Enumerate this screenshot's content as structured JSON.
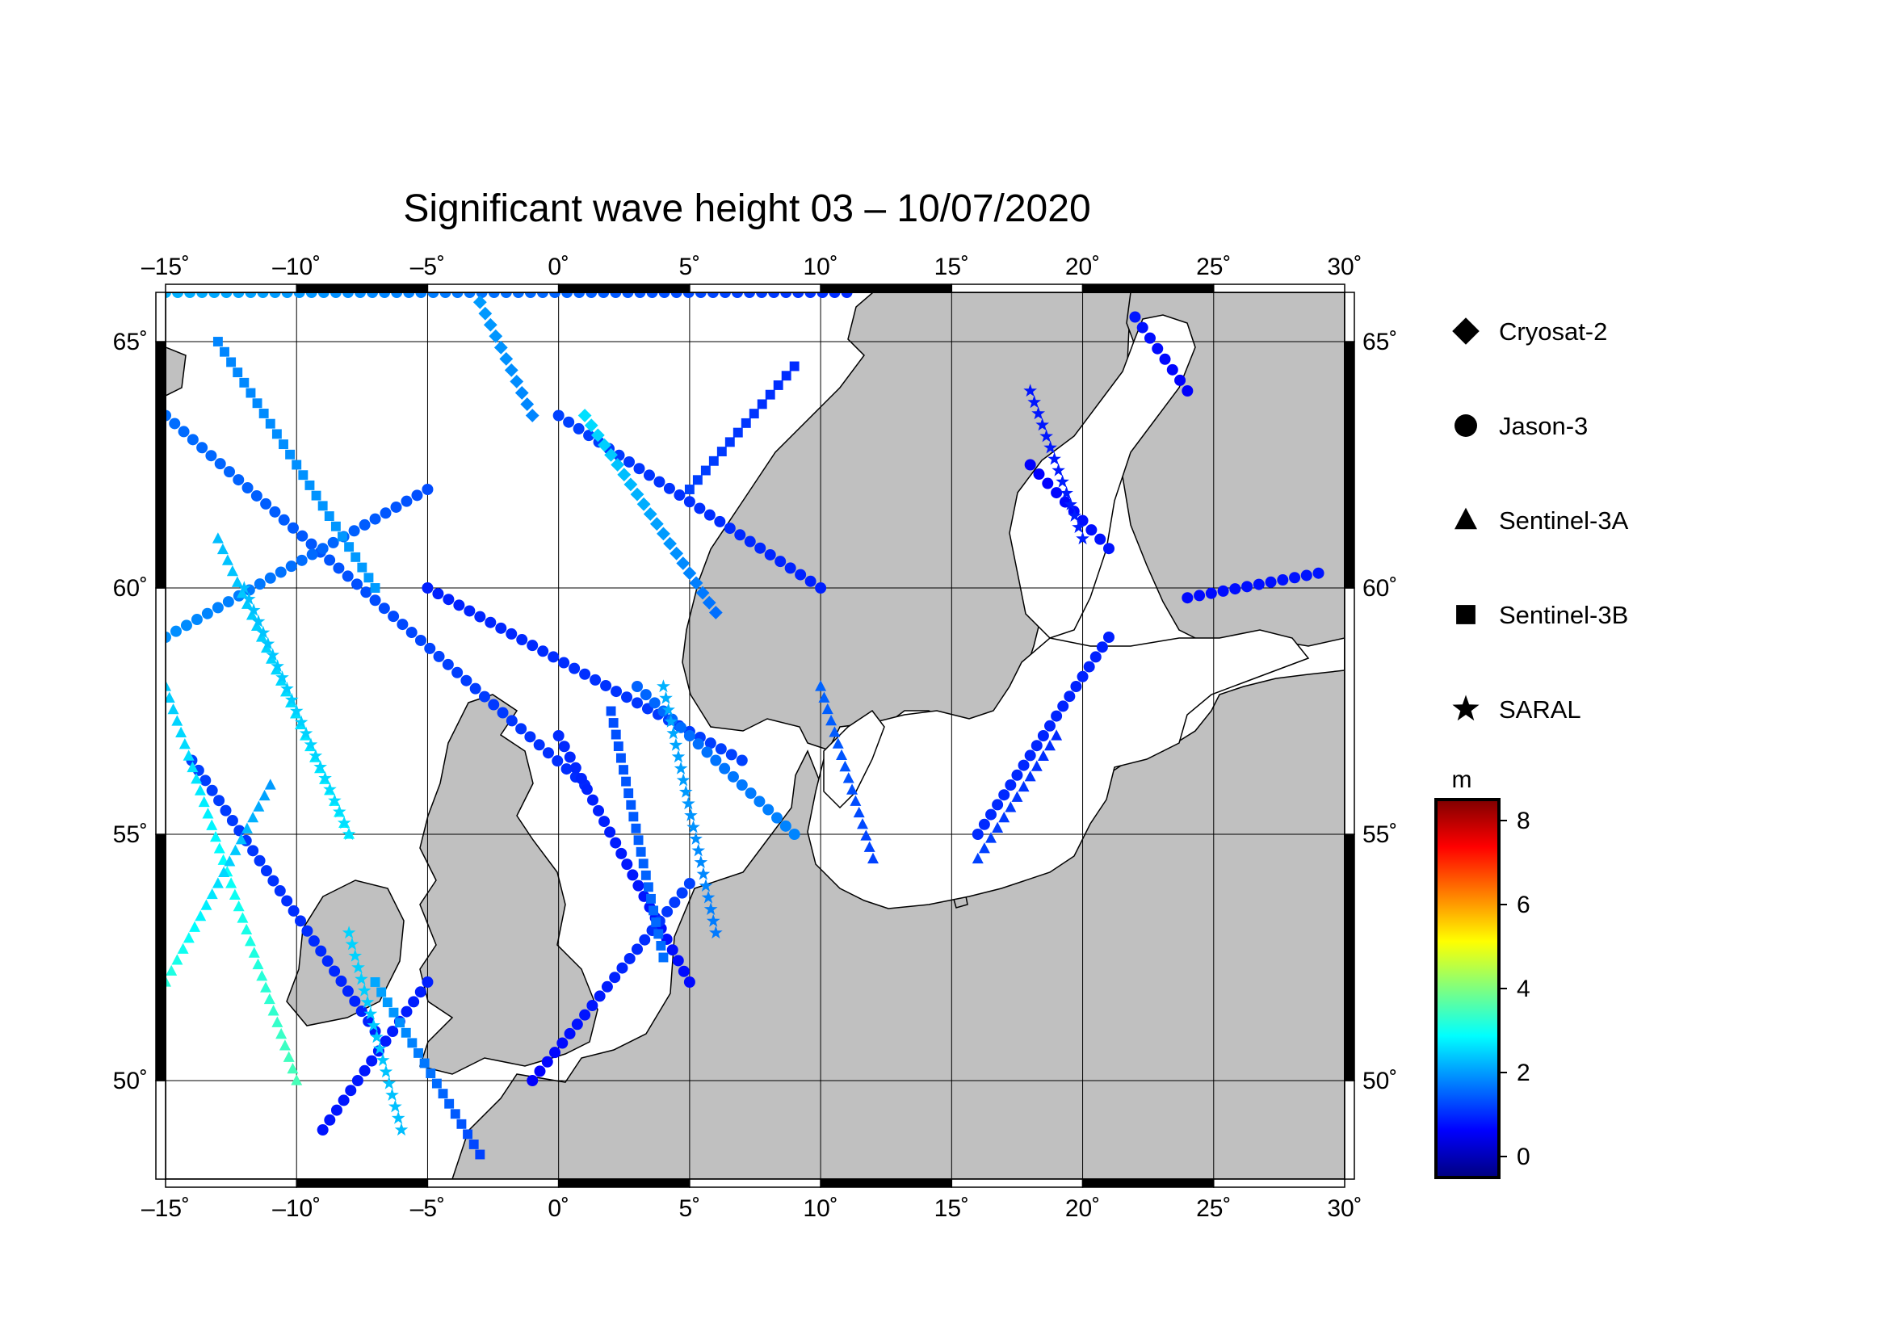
{
  "title": "Significant wave height 03 – 10/07/2020",
  "map": {
    "lon_range": [
      -15,
      30
    ],
    "lat_range": [
      48,
      66
    ],
    "lon_ticks": [
      {
        "value": -15,
        "label": "–15˚"
      },
      {
        "value": -10,
        "label": "–10˚"
      },
      {
        "value": -5,
        "label": "–5˚"
      },
      {
        "value": 0,
        "label": "0˚"
      },
      {
        "value": 5,
        "label": "5˚"
      },
      {
        "value": 10,
        "label": "10˚"
      },
      {
        "value": 15,
        "label": "15˚"
      },
      {
        "value": 20,
        "label": "20˚"
      },
      {
        "value": 25,
        "label": "25˚"
      },
      {
        "value": 30,
        "label": "30˚"
      }
    ],
    "lat_ticks": [
      {
        "value": 50,
        "label": "50˚"
      },
      {
        "value": 55,
        "label": "55˚"
      },
      {
        "value": 60,
        "label": "60˚"
      },
      {
        "value": 65,
        "label": "65˚"
      }
    ],
    "land_color": "#c0c0c0",
    "sea_color": "#ffffff",
    "grid": true
  },
  "legend": {
    "items": [
      {
        "label": "Cryosat-2",
        "symbol": "diamond"
      },
      {
        "label": "Jason-3",
        "symbol": "circle"
      },
      {
        "label": "Sentinel-3A",
        "symbol": "triangle"
      },
      {
        "label": "Sentinel-3B",
        "symbol": "square"
      },
      {
        "label": "SARAL",
        "symbol": "star"
      }
    ]
  },
  "colorbar": {
    "unit": "m",
    "min": -0.5,
    "max": 8.5,
    "ticks": [
      {
        "value": 0,
        "label": "0"
      },
      {
        "value": 2,
        "label": "2"
      },
      {
        "value": 4,
        "label": "4"
      },
      {
        "value": 6,
        "label": "6"
      },
      {
        "value": 8,
        "label": "8"
      }
    ],
    "colormap": [
      "#00007f",
      "#0000ff",
      "#007fff",
      "#00ffff",
      "#7fff7f",
      "#ffff00",
      "#ff7f00",
      "#ff0000",
      "#7f0000"
    ]
  },
  "chart_data": {
    "type": "scatter",
    "xlabel": "",
    "ylabel": "",
    "xlim": [
      -15,
      30
    ],
    "ylim": [
      48,
      66
    ],
    "value_unit": "m",
    "tracks": [
      {
        "satellite": "Jason-3",
        "symbol": "circle",
        "from": [
          -15,
          63.5
        ],
        "to": [
          1,
          56
        ],
        "swh": [
          1.6,
          1.0
        ]
      },
      {
        "satellite": "Jason-3",
        "symbol": "circle",
        "from": [
          0,
          57
        ],
        "to": [
          5,
          52
        ],
        "swh": [
          1.0,
          0.7
        ]
      },
      {
        "satellite": "Jason-3",
        "symbol": "circle",
        "from": [
          -5,
          60
        ],
        "to": [
          7,
          56.5
        ],
        "swh": [
          0.9,
          1.2
        ]
      },
      {
        "satellite": "Jason-3",
        "symbol": "circle",
        "from": [
          -15,
          59
        ],
        "to": [
          -5,
          62
        ],
        "swh": [
          1.9,
          1.3
        ]
      },
      {
        "satellite": "Jason-3",
        "symbol": "circle",
        "from": [
          -15,
          66
        ],
        "to": [
          11,
          66
        ],
        "swh": [
          2.2,
          1.0
        ]
      },
      {
        "satellite": "Jason-3",
        "symbol": "circle",
        "from": [
          -9,
          49
        ],
        "to": [
          -5,
          52
        ],
        "swh": [
          0.8,
          0.9
        ]
      },
      {
        "satellite": "Jason-3",
        "symbol": "circle",
        "from": [
          -1,
          50
        ],
        "to": [
          5,
          54
        ],
        "swh": [
          0.6,
          1.2
        ]
      },
      {
        "satellite": "Jason-3",
        "symbol": "circle",
        "from": [
          0,
          63.5
        ],
        "to": [
          10,
          60
        ],
        "swh": [
          1.2,
          0.9
        ]
      },
      {
        "satellite": "Jason-3",
        "symbol": "circle",
        "from": [
          3,
          58
        ],
        "to": [
          9,
          55
        ],
        "swh": [
          1.5,
          1.8
        ]
      },
      {
        "satellite": "Jason-3",
        "symbol": "circle",
        "from": [
          18,
          62.5
        ],
        "to": [
          21,
          60.8
        ],
        "swh": [
          0.6,
          0.8
        ]
      },
      {
        "satellite": "Jason-3",
        "symbol": "circle",
        "from": [
          22,
          65.5
        ],
        "to": [
          24,
          64
        ],
        "swh": [
          0.8,
          0.6
        ]
      },
      {
        "satellite": "Jason-3",
        "symbol": "circle",
        "from": [
          16,
          55
        ],
        "to": [
          21,
          59
        ],
        "swh": [
          1.0,
          0.9
        ]
      },
      {
        "satellite": "Jason-3",
        "symbol": "circle",
        "from": [
          24,
          59.8
        ],
        "to": [
          29,
          60.3
        ],
        "swh": [
          0.7,
          0.8
        ]
      },
      {
        "satellite": "Jason-3",
        "symbol": "circle",
        "from": [
          -14,
          56.5
        ],
        "to": [
          -7,
          51
        ],
        "swh": [
          1.2,
          0.9
        ]
      },
      {
        "satellite": "Sentinel-3A",
        "symbol": "triangle",
        "from": [
          -15,
          58
        ],
        "to": [
          -10,
          50
        ],
        "swh": [
          2.4,
          3.5
        ]
      },
      {
        "satellite": "Sentinel-3A",
        "symbol": "triangle",
        "from": [
          -13,
          61
        ],
        "to": [
          -8,
          55
        ],
        "swh": [
          2.3,
          2.8
        ]
      },
      {
        "satellite": "Sentinel-3A",
        "symbol": "triangle",
        "from": [
          -15,
          52
        ],
        "to": [
          -11,
          56
        ],
        "swh": [
          3.2,
          2.0
        ]
      },
      {
        "satellite": "Sentinel-3A",
        "symbol": "triangle",
        "from": [
          10,
          58
        ],
        "to": [
          12,
          54.5
        ],
        "swh": [
          1.5,
          1.2
        ]
      },
      {
        "satellite": "Sentinel-3A",
        "symbol": "triangle",
        "from": [
          16,
          54.5
        ],
        "to": [
          19,
          57
        ],
        "swh": [
          1.2,
          1.0
        ]
      },
      {
        "satellite": "Sentinel-3B",
        "symbol": "square",
        "from": [
          2,
          57.5
        ],
        "to": [
          4,
          52.5
        ],
        "swh": [
          1.3,
          1.6
        ]
      },
      {
        "satellite": "Sentinel-3B",
        "symbol": "square",
        "from": [
          -7,
          52
        ],
        "to": [
          -3,
          48.5
        ],
        "swh": [
          2.1,
          1.2
        ]
      },
      {
        "satellite": "Sentinel-3B",
        "symbol": "square",
        "from": [
          -13,
          65
        ],
        "to": [
          -7,
          60
        ],
        "swh": [
          1.8,
          2.0
        ]
      },
      {
        "satellite": "Sentinel-3B",
        "symbol": "square",
        "from": [
          5,
          62
        ],
        "to": [
          9,
          64.5
        ],
        "swh": [
          1.2,
          1.0
        ]
      },
      {
        "satellite": "SARAL",
        "symbol": "star",
        "from": [
          -12,
          60
        ],
        "to": [
          -8,
          55
        ],
        "swh": [
          2.3,
          2.6
        ]
      },
      {
        "satellite": "SARAL",
        "symbol": "star",
        "from": [
          4,
          58
        ],
        "to": [
          6,
          53
        ],
        "swh": [
          2.2,
          1.7
        ]
      },
      {
        "satellite": "SARAL",
        "symbol": "star",
        "from": [
          -8,
          53
        ],
        "to": [
          -6,
          49
        ],
        "swh": [
          2.5,
          2.3
        ]
      },
      {
        "satellite": "SARAL",
        "symbol": "star",
        "from": [
          18,
          64
        ],
        "to": [
          20,
          61
        ],
        "swh": [
          0.8,
          0.9
        ]
      },
      {
        "satellite": "Cryosat-2",
        "symbol": "diamond",
        "from": [
          1,
          63.5
        ],
        "to": [
          6,
          59.5
        ],
        "swh": [
          2.6,
          1.6
        ]
      },
      {
        "satellite": "Cryosat-2",
        "symbol": "diamond",
        "from": [
          -3,
          65.8
        ],
        "to": [
          -1,
          63.5
        ],
        "swh": [
          2.0,
          1.8
        ]
      }
    ]
  }
}
